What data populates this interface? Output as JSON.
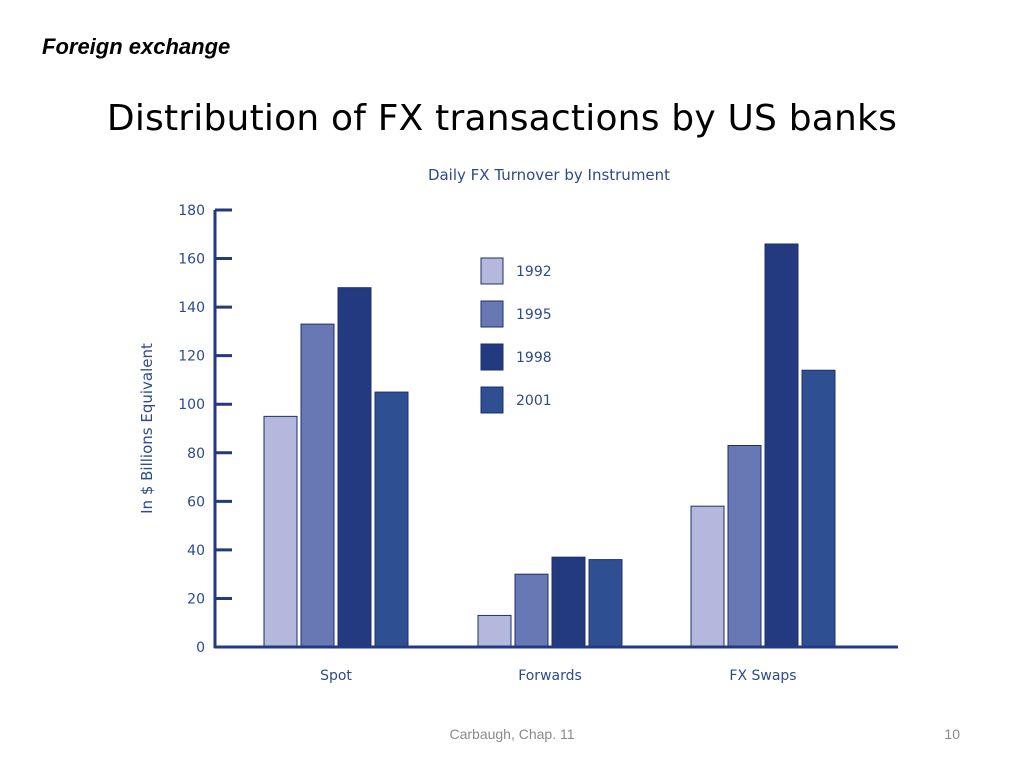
{
  "slide": {
    "section_label": "Foreign exchange",
    "title": "Distribution of FX transactions by US banks",
    "footer_source": "Carbaugh, Chap. 11",
    "page_number": "10"
  },
  "chart_data": {
    "type": "bar",
    "title": "Daily FX Turnover by Instrument",
    "ylabel": "In $ Billions Equivalent",
    "xlabel": "",
    "categories": [
      "Spot",
      "Forwards",
      "FX Swaps"
    ],
    "ylim": [
      0,
      180
    ],
    "yticks": [
      0,
      20,
      40,
      60,
      80,
      100,
      120,
      140,
      160,
      180
    ],
    "grid": false,
    "legend_position": "center",
    "series": [
      {
        "name": "1992",
        "color": "#b3b8dc",
        "values": [
          95,
          13,
          58
        ]
      },
      {
        "name": "1995",
        "color": "#6878b4",
        "values": [
          133,
          30,
          83
        ]
      },
      {
        "name": "1998",
        "color": "#233a80",
        "values": [
          148,
          37,
          166
        ]
      },
      {
        "name": "2001",
        "color": "#2f4f93",
        "values": [
          105,
          36,
          114
        ]
      }
    ],
    "text_color": "#2d4a8e",
    "axis_color": "#233a80"
  }
}
